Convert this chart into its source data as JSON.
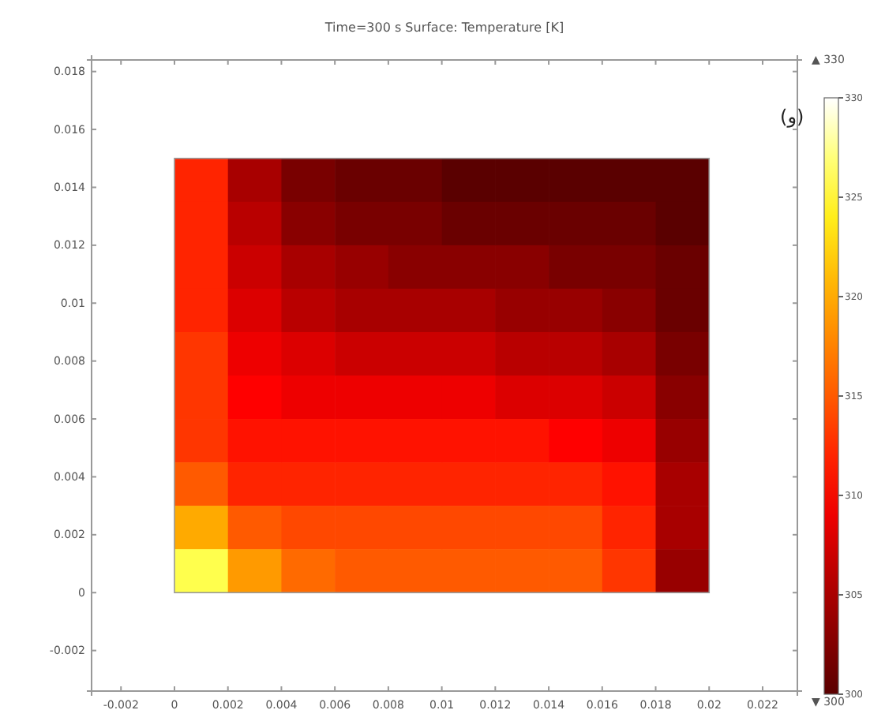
{
  "chart_data": {
    "type": "heatmap",
    "title": "Time=300 s   Surface: Temperature [K]",
    "x": [
      0.001,
      0.003,
      0.005,
      0.007,
      0.009,
      0.011,
      0.013,
      0.015,
      0.017,
      0.019
    ],
    "y": [
      0.01425,
      0.01275,
      0.01125,
      0.00975,
      0.00825,
      0.00675,
      0.00525,
      0.00375,
      0.00225,
      0.00075
    ],
    "cells": [
      [
        312,
        305,
        302,
        301,
        301,
        300,
        300,
        300,
        300,
        300
      ],
      [
        312,
        306,
        303,
        302,
        302,
        301,
        301,
        301,
        301,
        300
      ],
      [
        312,
        307,
        305,
        304,
        303,
        303,
        303,
        302,
        302,
        301
      ],
      [
        312,
        308,
        306,
        305,
        305,
        305,
        304,
        304,
        303,
        301
      ],
      [
        313,
        309,
        308,
        307,
        307,
        307,
        306,
        306,
        305,
        302
      ],
      [
        313,
        310,
        309,
        309,
        309,
        309,
        308,
        308,
        307,
        303
      ],
      [
        313,
        311,
        311,
        311,
        311,
        311,
        311,
        310,
        309,
        304
      ],
      [
        315,
        312,
        312,
        312,
        312,
        312,
        312,
        312,
        311,
        305
      ],
      [
        320,
        315,
        314,
        314,
        314,
        314,
        314,
        314,
        312,
        305
      ],
      [
        326,
        319,
        316,
        315,
        315,
        315,
        315,
        315,
        313,
        304
      ]
    ],
    "xlim": [
      -0.0031,
      0.0233
    ],
    "ylim": [
      -0.0034,
      0.0184
    ],
    "xticks": [
      {
        "value": -0.002,
        "label": "-0.002"
      },
      0,
      0.002,
      0.004,
      0.006,
      0.008,
      0.01,
      0.012,
      0.014,
      0.016,
      0.018,
      0.02,
      0.022
    ],
    "yticks": [
      {
        "value": -0.002,
        "label": "-0.002"
      },
      0,
      0.002,
      0.004,
      0.006,
      0.008,
      0.01,
      0.012,
      0.014,
      0.016,
      0.018
    ],
    "clim": [
      300,
      330
    ],
    "cticks": [
      300,
      305,
      310,
      315,
      320,
      325,
      330
    ],
    "annotations": [
      "(و)",
      "▲ 330",
      "▼ 300"
    ]
  }
}
